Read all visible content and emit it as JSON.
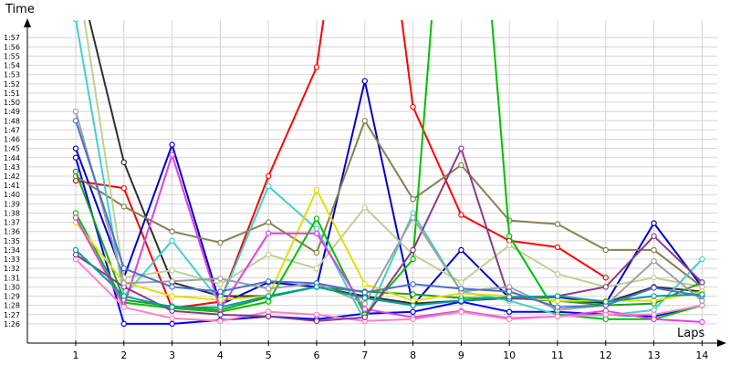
{
  "chart_data": {
    "type": "line",
    "xlabel": "Laps",
    "ylabel": "Time",
    "x_ticks": [
      "1",
      "2",
      "3",
      "4",
      "5",
      "6",
      "7",
      "8",
      "9",
      "10",
      "11",
      "12",
      "13",
      "14"
    ],
    "y_ticks": [
      "1:26",
      "1:27",
      "1:28",
      "1:29",
      "1:30",
      "1:31",
      "1:32",
      "1:33",
      "1:34",
      "1:35",
      "1:36",
      "1:37",
      "1:38",
      "1:39",
      "1:40",
      "1:41",
      "1:42",
      "1:43",
      "1:44",
      "1:45",
      "1:46",
      "1:47",
      "1:48",
      "1:49",
      "1:50",
      "1:51",
      "1:52",
      "1:53",
      "1:54",
      "1:55",
      "1:56",
      "1:57"
    ],
    "ylim": [
      "1:25",
      "1:59"
    ],
    "grid": true,
    "series": [
      {
        "color": "#ff0000",
        "values": [
          "1:41.5",
          "1:40.7",
          "1:27.7",
          "1:28.4",
          "1:42.0",
          "1:53.8",
          "2:30.0",
          "1:49.5",
          "1:37.8",
          "1:35.0",
          "1:34.3",
          "1:31.0"
        ]
      },
      {
        "color": "#0000ff",
        "values": [
          "1:44.0",
          "1:26.0",
          "1:26.0",
          "1:26.4",
          "1:26.8",
          "1:26.5",
          "1:27.1",
          "1:27.3",
          "1:28.4",
          "1:27.3",
          "1:27.3",
          "1:27.0",
          "1:26.8",
          "1:28.0"
        ]
      },
      {
        "color": "#0000cc",
        "values": [
          "1:45.0",
          "1:31.0",
          "1:45.4",
          "1:28.1",
          "1:30.5",
          "1:30.0",
          "1:52.3",
          "1:28.0",
          "1:34.0",
          "1:28.8",
          "1:28.9",
          "1:28.2",
          "1:36.9",
          "1:30.0"
        ]
      },
      {
        "color": "#303030",
        "values": [
          "2:05.0",
          "1:43.5",
          "1:30.5",
          "1:29.0",
          "1:29.0",
          "1:30.0",
          "1:29.0",
          "1:28.2",
          "1:28.5",
          "1:28.8",
          "1:28.5",
          "1:28.3",
          "1:30.0",
          "1:29.5"
        ]
      },
      {
        "color": "#888050",
        "values": [
          "1:42.0",
          "1:38.7",
          "1:36.0",
          "1:34.8",
          "1:37.0",
          "1:33.7",
          "1:48.0",
          "1:39.5",
          "1:43.2",
          "1:37.2",
          "1:36.8",
          "1:34.0",
          "1:34.0",
          "1:30.0"
        ]
      },
      {
        "color": "#c0d090",
        "values": [
          "2:05.0",
          "1:31.0",
          "1:31.8",
          "1:30.3",
          "1:33.5",
          "1:32.0",
          "1:38.6",
          "1:33.5",
          "1:30.5",
          "1:34.5",
          "1:31.4",
          "1:30.0",
          "1:31.0",
          "1:30.0"
        ]
      },
      {
        "color": "#40d0d0",
        "values": [
          "1:59.0",
          "1:29.0",
          "1:35.0",
          "1:28.4",
          "1:40.9",
          "1:36.3",
          "1:26.3",
          "1:38.0",
          "1:29.5",
          "1:28.5",
          "1:27.0",
          "1:26.9",
          "1:27.5",
          "1:33.0"
        ]
      },
      {
        "color": "#00c000",
        "values": [
          "1:38.0",
          "1:28.3",
          "1:27.7",
          "1:27.3",
          "1:28.4",
          "1:37.4",
          "1:27.0",
          "1:33.0",
          "2:40.0",
          "1:35.5",
          "1:27.0",
          "1:26.5",
          "1:26.5",
          "1:28.0"
        ]
      },
      {
        "color": "#20a020",
        "values": [
          "1:42.5",
          "1:28.6",
          "1:27.9",
          "1:27.5",
          "1:28.9",
          "1:30.0",
          "1:29.5",
          "1:29.2",
          "1:28.8",
          "1:28.8",
          "1:28.5",
          "1:28.0",
          "1:28.2",
          "1:30.5"
        ]
      },
      {
        "color": "#e0e000",
        "values": [
          "1:37.0",
          "1:30.5",
          "1:29.0",
          "1:28.6",
          "1:29.0",
          "1:40.5",
          "1:30.3",
          "1:28.5",
          "1:29.3",
          "1:29.0",
          "1:28.5",
          "1:28.5",
          "1:28.5",
          "1:29.5"
        ]
      },
      {
        "color": "#e040e0",
        "values": [
          "1:37.5",
          "1:27.9",
          "1:44.3",
          "1:27.6",
          "1:35.8",
          "1:35.8",
          "1:27.6",
          "1:26.7",
          "1:27.4",
          "1:26.6",
          "1:26.8",
          "1:27.4",
          "1:26.5",
          "1:26.2"
        ]
      },
      {
        "color": "#ff80c0",
        "values": [
          "1:33.0",
          "1:27.8",
          "1:26.6",
          "1:26.3",
          "1:27.3",
          "1:27.0",
          "1:26.3",
          "1:26.5",
          "1:27.3",
          "1:26.5",
          "1:26.8",
          "1:27.0",
          "1:27.0",
          "1:28.0"
        ]
      },
      {
        "color": "#8a3a8a",
        "values": [
          "1:33.5",
          "1:30.0",
          "1:27.4",
          "1:27.0",
          "1:26.8",
          "1:26.3",
          "1:26.7",
          "1:34.0",
          "1:45.0",
          "1:28.7",
          "1:29.0",
          "1:30.0",
          "1:35.5",
          "1:30.5"
        ]
      },
      {
        "color": "#a0a0a0",
        "values": [
          "1:49.0",
          "1:30.4",
          "1:30.6",
          "1:30.9",
          "1:29.8",
          "1:30.4",
          "1:28.2",
          "1:37.5",
          "1:29.5",
          "1:30.0",
          "1:27.5",
          "1:28.0",
          "1:32.8",
          "1:28.5"
        ]
      },
      {
        "color": "#4a70d0",
        "values": [
          "1:48.0",
          "1:32.0",
          "1:30.0",
          "1:29.5",
          "1:30.6",
          "1:30.4",
          "1:29.4",
          "1:30.3",
          "1:29.8",
          "1:29.5",
          "1:27.8",
          "1:28.0",
          "1:29.9",
          "1:29.0"
        ]
      },
      {
        "color": "#00a0a0",
        "values": [
          "1:34.0",
          "1:29.0",
          "1:27.8",
          "1:27.8",
          "1:29.0",
          "1:30.0",
          "1:28.8",
          "1:28.0",
          "1:28.5",
          "1:28.9",
          "1:29.0",
          "1:28.4",
          "1:29.0",
          "1:29.2"
        ]
      }
    ]
  }
}
